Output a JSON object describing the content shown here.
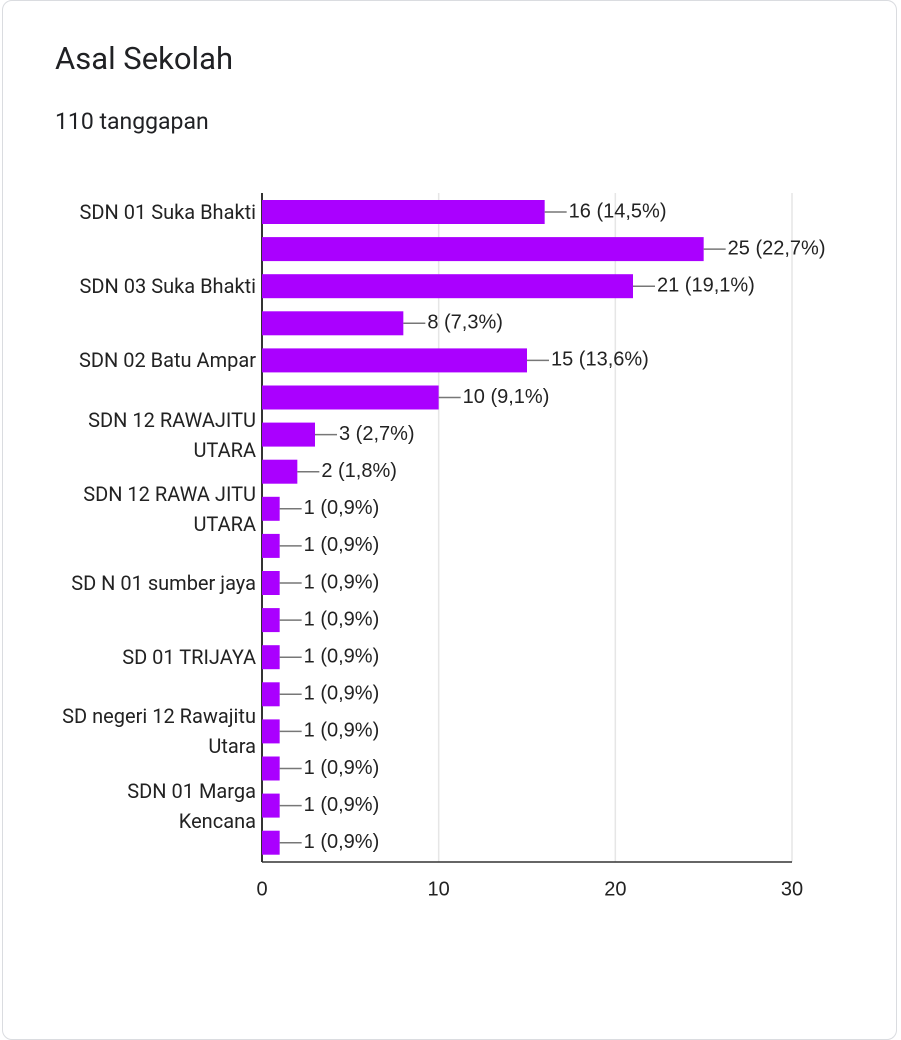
{
  "chart_data": {
    "type": "bar",
    "orientation": "horizontal",
    "title": "Asal Sekolah",
    "subtitle": "110 tanggapan",
    "categories": [
      "SDN 01 Suka Bhakti",
      null,
      "SDN 03 Suka Bhakti",
      null,
      "SDN 02 Batu Ampar",
      null,
      "SDN 12 RAWAJITU UTARA",
      null,
      "SDN 12 RAWA JITU UTARA",
      null,
      "SD N 01 sumber jaya",
      null,
      "SD 01 TRIJAYA",
      null,
      "SD negeri 12 Rawajitu Utara",
      null,
      "SDN 01 Marga Kencana",
      null
    ],
    "values": [
      16,
      25,
      21,
      8,
      15,
      10,
      3,
      2,
      1,
      1,
      1,
      1,
      1,
      1,
      1,
      1,
      1,
      1
    ],
    "value_labels": [
      "16 (14,5%)",
      "25 (22,7%)",
      "21 (19,1%)",
      "8 (7,3%)",
      "15 (13,6%)",
      "10 (9,1%)",
      "3 (2,7%)",
      "2 (1,8%)",
      "1 (0,9%)",
      "1 (0,9%)",
      "1 (0,9%)",
      "1 (0,9%)",
      "1 (0,9%)",
      "1 (0,9%)",
      "1 (0,9%)",
      "1 (0,9%)",
      "1 (0,9%)",
      "1 (0,9%)"
    ],
    "color": "#aa00ff",
    "xlim": [
      0,
      30
    ],
    "xticks": [
      0,
      10,
      20,
      30
    ],
    "grid": true
  }
}
